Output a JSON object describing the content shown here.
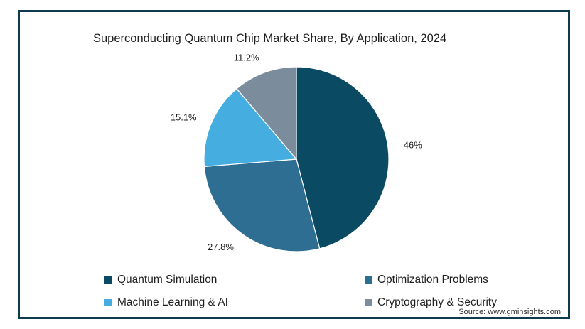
{
  "chart_data": {
    "type": "pie",
    "title": "Superconducting Quantum Chip Market Share, By Application, 2024",
    "slices": [
      {
        "name": "Quantum Simulation",
        "value": 46,
        "label": "46%",
        "color": "#0b4a63"
      },
      {
        "name": "Optimization Problems",
        "value": 27.8,
        "label": "27.8%",
        "color": "#2e6e93"
      },
      {
        "name": "Machine Learning & AI",
        "value": 15.1,
        "label": "15.1%",
        "color": "#46ade0"
      },
      {
        "name": "Cryptography & Security",
        "value": 11.2,
        "label": "11.2%",
        "color": "#7b8c9d"
      }
    ],
    "legend_position": "bottom"
  },
  "source": "Source: www.gminsights.com"
}
